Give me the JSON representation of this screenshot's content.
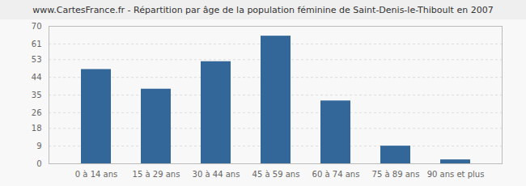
{
  "chart_data": {
    "type": "bar",
    "title": "www.CartesFrance.fr - Répartition par âge de la population féminine de Saint-Denis-le-Thiboult en 2007",
    "categories": [
      "0 à 14 ans",
      "15 à 29 ans",
      "30 à 44 ans",
      "45 à 59 ans",
      "60 à 74 ans",
      "75 à 89 ans",
      "90 ans et plus"
    ],
    "values": [
      48,
      38,
      52,
      65,
      32,
      9,
      2
    ],
    "color": "#336699",
    "ylim": [
      0,
      70
    ],
    "yticks": [
      0,
      9,
      18,
      26,
      35,
      44,
      53,
      61,
      70
    ],
    "grid": true
  }
}
